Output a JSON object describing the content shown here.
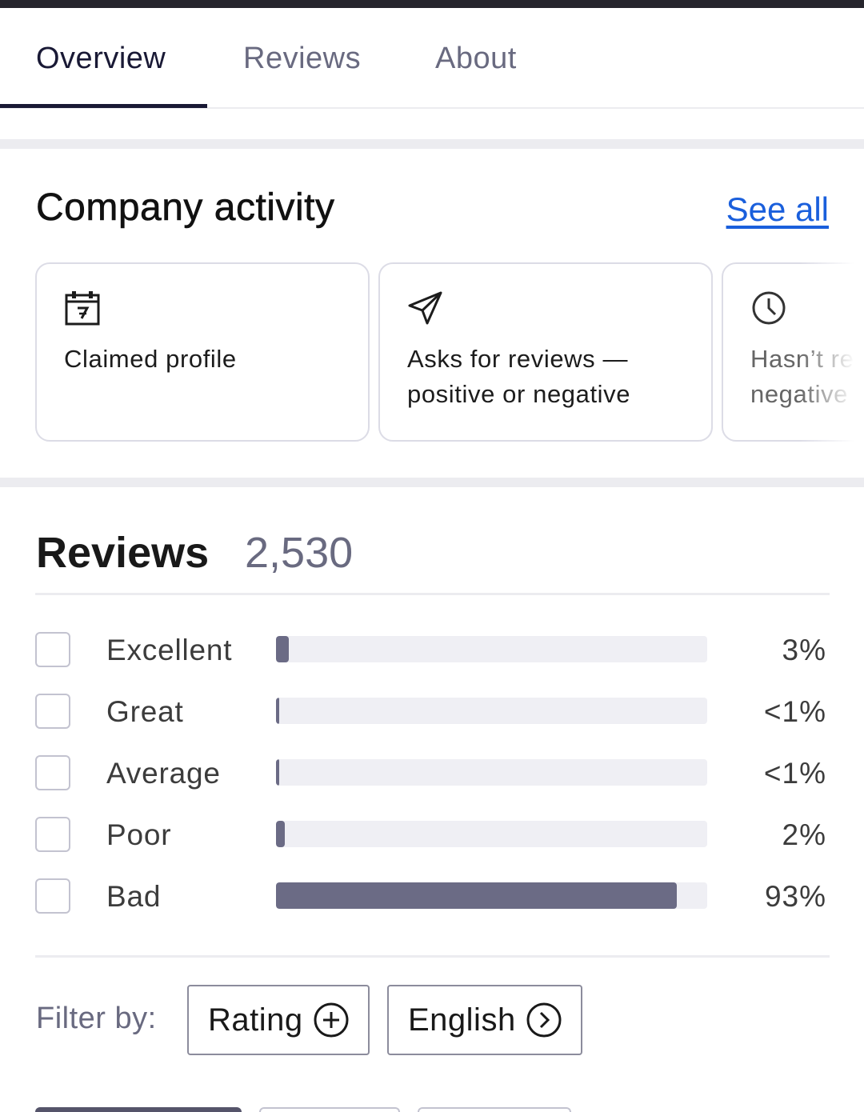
{
  "tabs": [
    {
      "label": "Overview",
      "active": true
    },
    {
      "label": "Reviews",
      "active": false
    },
    {
      "label": "About",
      "active": false
    }
  ],
  "activity": {
    "title": "Company activity",
    "see_all": "See all",
    "cards": [
      {
        "icon": "calendar-icon",
        "text": "Claimed profile"
      },
      {
        "icon": "paper-plane-icon",
        "text": "Asks for reviews — positive or negative"
      },
      {
        "icon": "clock-icon",
        "text": "Hasn’t replied to negative reviews"
      }
    ]
  },
  "reviews": {
    "title": "Reviews",
    "count": "2,530",
    "distribution": [
      {
        "label": "Excellent",
        "percent_text": "3%",
        "fill": 0.03
      },
      {
        "label": "Great",
        "percent_text": "<1%",
        "fill": 0.004
      },
      {
        "label": "Average",
        "percent_text": "<1%",
        "fill": 0.004
      },
      {
        "label": "Poor",
        "percent_text": "2%",
        "fill": 0.02
      },
      {
        "label": "Bad",
        "percent_text": "93%",
        "fill": 0.93
      }
    ]
  },
  "filter": {
    "label": "Filter by:",
    "rating_button": "Rating",
    "language_button": "English"
  },
  "colors": {
    "accent_dark": "#191935",
    "link": "#1a5fdc",
    "bar_fill": "#6b6b85",
    "bar_track": "#efeff4"
  }
}
